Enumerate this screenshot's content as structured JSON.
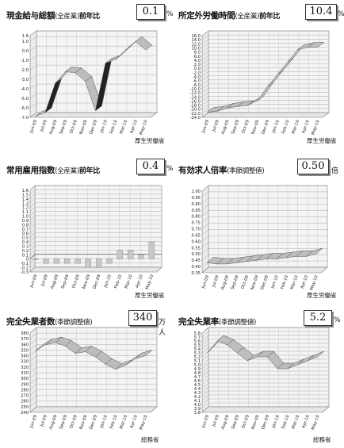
{
  "panels": [
    {
      "id": "p1",
      "title": "現金給与総額",
      "sub": "(全産業)",
      "suffix": "前年比",
      "value": "0.1",
      "unit": "%",
      "source": "厚生労働省"
    },
    {
      "id": "p2",
      "title": "所定外労働時間",
      "sub": "(全産業)",
      "suffix": "前年比",
      "value": "10.4",
      "unit": "%",
      "source": "厚生労働省"
    },
    {
      "id": "p3",
      "title": "常用雇用指数",
      "sub": "(全産業)",
      "suffix": "前年比",
      "value": "0.4",
      "unit": "%",
      "source": "厚生労働省"
    },
    {
      "id": "p4",
      "title": "有効求人倍率",
      "sub": "(季節調整値)",
      "suffix": "",
      "value": "0.50",
      "unit": "倍",
      "source": "厚生労働省"
    },
    {
      "id": "p5",
      "title": "完全失業者数",
      "sub": "(季節調整値)",
      "suffix": "",
      "value": "340",
      "unit": "万人",
      "source": "総務省"
    },
    {
      "id": "p6",
      "title": "完全失業率",
      "sub": "(季節調整値)",
      "suffix": "",
      "value": "5.2",
      "unit": "%",
      "source": "総務省"
    }
  ],
  "chart_data": [
    {
      "id": "p1",
      "type": "area",
      "categories": [
        "Jun-09",
        "Jul-09",
        "Aug-09",
        "Sep-09",
        "Oct-09",
        "Nov-09",
        "Dec-09",
        "Jan-10",
        "Feb-10",
        "Mar-10",
        "Apr-10",
        "May-10"
      ],
      "ylim": [
        -7.0,
        1.6
      ],
      "yticks": [
        "1.6",
        "1.0",
        "0.0",
        "-1.0",
        "-2.0",
        "-3.0",
        "-4.0",
        "-5.0",
        "-6.0",
        "-7.0"
      ],
      "values": [
        -6.9,
        -6.5,
        -3.4,
        -2.2,
        -2.3,
        -3.2,
        -6.3,
        -1.3,
        -0.9,
        0.1,
        1.0,
        0.1
      ]
    },
    {
      "id": "p2",
      "type": "area",
      "categories": [
        "Jun-09",
        "Jul-09",
        "Aug-09",
        "Sep-09",
        "Oct-09",
        "Nov-09",
        "Dec-09",
        "Jan-10",
        "Feb-10",
        "Mar-10",
        "Apr-10",
        "May-10"
      ],
      "ylim": [
        -24.0,
        16.0
      ],
      "yticks": [
        "16.0",
        "14.0",
        "12.0",
        "10.0",
        "8.0",
        "6.0",
        "4.0",
        "2.0",
        "0.0",
        "-2.0",
        "-4.0",
        "-6.0",
        "-8.0",
        "-10.0",
        "-12.0",
        "-14.0",
        "-16.0",
        "-18.0",
        "-20.0",
        "-22.0",
        "-24.0"
      ],
      "values": [
        -21.5,
        -21.0,
        -19.5,
        -18.7,
        -18.2,
        -15.9,
        -9.0,
        -3.0,
        3.0,
        9.1,
        10.3,
        10.4
      ]
    },
    {
      "id": "p3",
      "type": "bar",
      "categories": [
        "Jun-09",
        "Jul-09",
        "Aug-09",
        "Sep-09",
        "Oct-09",
        "Nov-09",
        "Dec-09",
        "Jan-10",
        "Feb-10",
        "Mar-10",
        "Apr-10",
        "May-10"
      ],
      "ylim": [
        -0.3,
        1.6
      ],
      "yticks": [
        "1.6",
        "1.5",
        "1.4",
        "1.3",
        "1.2",
        "1.1",
        "1.0",
        "0.9",
        "0.8",
        "0.7",
        "0.6",
        "0.5",
        "0.4",
        "0.3",
        "0.2",
        "0.1",
        "0",
        "-0.1",
        "-0.2",
        "-0.3"
      ],
      "values": [
        0.0,
        -0.1,
        -0.1,
        -0.1,
        -0.1,
        -0.2,
        -0.2,
        -0.1,
        0.2,
        0.2,
        0.1,
        0.4
      ]
    },
    {
      "id": "p4",
      "type": "area",
      "categories": [
        "Jun-09",
        "Jul-09",
        "Aug-09",
        "Sep-09",
        "Oct-09",
        "Nov-09",
        "Dec-09",
        "Jan-10",
        "Feb-10",
        "Mar-10",
        "Apr-10",
        "May-10"
      ],
      "ylim": [
        0.35,
        1.0
      ],
      "yticks": [
        "1.00",
        "0.95",
        "0.90",
        "0.85",
        "0.80",
        "0.75",
        "0.70",
        "0.65",
        "0.60",
        "0.55",
        "0.50",
        "0.45",
        "0.40",
        "0.35"
      ],
      "values": [
        0.43,
        0.42,
        0.42,
        0.43,
        0.44,
        0.45,
        0.46,
        0.46,
        0.47,
        0.48,
        0.48,
        0.5
      ]
    },
    {
      "id": "p5",
      "type": "area",
      "categories": [
        "Jun-09",
        "Jul-09",
        "Aug-09",
        "Sep-09",
        "Oct-09",
        "Nov-09",
        "Dec-09",
        "Jan-10",
        "Feb-10",
        "Mar-10",
        "Apr-10",
        "May-10"
      ],
      "ylim": [
        240,
        380
      ],
      "yticks": [
        "380",
        "370",
        "360",
        "350",
        "340",
        "330",
        "320",
        "310",
        "300",
        "290",
        "280",
        "270",
        "260",
        "250",
        "240"
      ],
      "values": [
        348,
        359,
        363,
        357,
        344,
        347,
        338,
        325,
        316,
        323,
        335,
        340
      ]
    },
    {
      "id": "p6",
      "type": "area",
      "categories": [
        "Jun-09",
        "Jul-09",
        "Aug-09",
        "Sep-09",
        "Oct-09",
        "Nov-09",
        "Dec-09",
        "Jan-10",
        "Feb-10",
        "Mar-10",
        "Apr-10",
        "May-10"
      ],
      "ylim": [
        3.8,
        5.8
      ],
      "yticks": [
        "5.8",
        "5.7",
        "5.6",
        "5.5",
        "5.4",
        "5.3",
        "5.2",
        "5.1",
        "5.0",
        "4.9",
        "4.8",
        "4.7",
        "4.6",
        "4.5",
        "4.4",
        "4.3",
        "4.2",
        "4.1",
        "4.0",
        "3.9",
        "3.8"
      ],
      "values": [
        5.3,
        5.6,
        5.5,
        5.3,
        5.1,
        5.2,
        5.2,
        4.9,
        4.9,
        5.0,
        5.1,
        5.2
      ]
    }
  ]
}
